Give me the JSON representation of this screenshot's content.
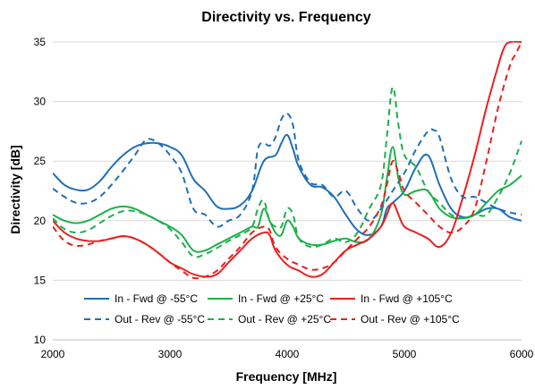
{
  "chart_data": {
    "type": "line",
    "title": "Directivity vs. Frequency",
    "xlabel": "Frequency [MHz]",
    "ylabel": "Directivity [dB]",
    "xlim": [
      2000,
      6000
    ],
    "ylim": [
      10,
      35
    ],
    "xticks": [
      2000,
      3000,
      4000,
      5000,
      6000
    ],
    "yticks": [
      10,
      15,
      20,
      25,
      30,
      35
    ],
    "grid": "horizontal",
    "legend_position": "bottom-inside",
    "series": [
      {
        "name": "In - Fwd @ -55°C",
        "color": "#1f6fb5",
        "dash": "solid",
        "x": [
          2000,
          2100,
          2200,
          2300,
          2400,
          2500,
          2600,
          2700,
          2800,
          2900,
          3000,
          3100,
          3200,
          3300,
          3400,
          3500,
          3600,
          3700,
          3800,
          3900,
          3950,
          4000,
          4050,
          4100,
          4200,
          4300,
          4400,
          4500,
          4600,
          4700,
          4800,
          4850,
          4900,
          5000,
          5100,
          5200,
          5300,
          5400,
          5500,
          5600,
          5700,
          5800,
          5900,
          6000
        ],
        "y": [
          24,
          23,
          22.6,
          22.6,
          23.3,
          24.5,
          25.5,
          26.2,
          26.5,
          26.5,
          26.2,
          25.5,
          23.5,
          22.5,
          21.2,
          21,
          21.3,
          22.5,
          25,
          25.5,
          26.5,
          27.2,
          26,
          24.5,
          23,
          22.8,
          22,
          20.5,
          19.2,
          18.8,
          19.5,
          21,
          21.5,
          22.5,
          24.5,
          25.5,
          23,
          21,
          20.3,
          20.5,
          21,
          21,
          20.3,
          20
        ]
      },
      {
        "name": "In - Fwd @ +25°C",
        "color": "#1db04b",
        "dash": "solid",
        "x": [
          2000,
          2100,
          2200,
          2300,
          2400,
          2500,
          2600,
          2700,
          2800,
          2900,
          3000,
          3100,
          3200,
          3300,
          3400,
          3500,
          3600,
          3700,
          3750,
          3800,
          3850,
          3900,
          3950,
          4000,
          4050,
          4100,
          4200,
          4300,
          4400,
          4500,
          4600,
          4700,
          4800,
          4850,
          4900,
          4950,
          5000,
          5100,
          5200,
          5300,
          5400,
          5500,
          5600,
          5700,
          5800,
          5900,
          6000
        ],
        "y": [
          20.5,
          20,
          19.8,
          20,
          20.5,
          21,
          21.2,
          21,
          20.5,
          20,
          19.5,
          18.8,
          17.5,
          17.5,
          18,
          18.5,
          19,
          19.5,
          19.5,
          21,
          20,
          19,
          18.8,
          20,
          19.5,
          18.5,
          18,
          18,
          18.3,
          18.5,
          18.2,
          18.5,
          20.5,
          23.5,
          26.2,
          23.5,
          22.2,
          22.5,
          22.5,
          21,
          20.3,
          20.2,
          20.5,
          21.5,
          22.5,
          23,
          23.8
        ]
      },
      {
        "name": "In - Fwd @ +105°C",
        "color": "#e8201e",
        "dash": "solid",
        "x": [
          2000,
          2100,
          2200,
          2300,
          2400,
          2500,
          2600,
          2700,
          2800,
          2900,
          3000,
          3100,
          3200,
          3300,
          3400,
          3500,
          3600,
          3700,
          3800,
          3850,
          3900,
          4000,
          4100,
          4200,
          4300,
          4400,
          4500,
          4600,
          4700,
          4800,
          4850,
          4900,
          4950,
          5000,
          5100,
          5200,
          5300,
          5400,
          5500,
          5600,
          5700,
          5800,
          5850,
          5900,
          6000
        ],
        "y": [
          20,
          19,
          18.5,
          18.3,
          18.3,
          18.5,
          18.7,
          18.5,
          18,
          17.3,
          16.5,
          16,
          15.5,
          15.3,
          15.5,
          16.5,
          17.5,
          18.5,
          19,
          18.8,
          17.5,
          16.3,
          15.8,
          15.3,
          15.5,
          16.5,
          17.5,
          18,
          18.5,
          19.5,
          20.5,
          21.5,
          20.5,
          19.5,
          19,
          18.5,
          17.8,
          19,
          22,
          25.5,
          29.5,
          33,
          34.5,
          35,
          35
        ]
      },
      {
        "name": "Out - Rev @ -55°C",
        "color": "#1f6fb5",
        "dash": "dashed",
        "x": [
          2000,
          2100,
          2200,
          2300,
          2400,
          2500,
          2600,
          2700,
          2800,
          2900,
          3000,
          3100,
          3200,
          3300,
          3400,
          3500,
          3600,
          3700,
          3750,
          3800,
          3850,
          3900,
          3950,
          4000,
          4050,
          4100,
          4200,
          4300,
          4400,
          4500,
          4600,
          4700,
          4800,
          4900,
          5000,
          5100,
          5200,
          5250,
          5300,
          5400,
          5500,
          5600,
          5700,
          5800,
          5900,
          6000
        ],
        "y": [
          22.7,
          22,
          21.5,
          21.5,
          22,
          23,
          24.2,
          25.5,
          26.8,
          26.5,
          25.5,
          24,
          21,
          20.5,
          19.5,
          20,
          20.5,
          22.5,
          26,
          26.5,
          26.3,
          27,
          28.5,
          29,
          28,
          25,
          23.2,
          23,
          22,
          22.5,
          21,
          20,
          21,
          22.5,
          24,
          26,
          27.5,
          27.6,
          27,
          23.5,
          22,
          22,
          21.5,
          21,
          20.7,
          20.5
        ]
      },
      {
        "name": "Out - Rev @ +25°C",
        "color": "#1db04b",
        "dash": "dashed",
        "x": [
          2000,
          2100,
          2200,
          2300,
          2400,
          2500,
          2600,
          2700,
          2800,
          2900,
          3000,
          3100,
          3200,
          3300,
          3400,
          3500,
          3600,
          3700,
          3750,
          3800,
          3850,
          3900,
          3950,
          4000,
          4050,
          4100,
          4200,
          4300,
          4400,
          4500,
          4600,
          4700,
          4800,
          4850,
          4900,
          4950,
          5000,
          5100,
          5200,
          5300,
          5400,
          5500,
          5600,
          5700,
          5800,
          5900,
          6000
        ],
        "y": [
          20.2,
          19.3,
          19,
          19.2,
          19.8,
          20.4,
          20.8,
          20.8,
          20.5,
          20,
          19.3,
          18.2,
          17,
          17.2,
          17.7,
          18.3,
          18.8,
          19.5,
          21,
          21.7,
          20,
          19.5,
          19.5,
          21,
          20.5,
          18.5,
          17.8,
          18,
          18.5,
          18.2,
          19,
          21,
          23,
          27,
          31.2,
          28,
          25.5,
          24.5,
          22.5,
          21.5,
          20.5,
          20.2,
          20.5,
          20.5,
          22,
          24,
          26.7
        ]
      },
      {
        "name": "Out - Rev @ +105°C",
        "color": "#e8201e",
        "dash": "dashed",
        "x": [
          2000,
          2100,
          2200,
          2300,
          2400,
          2500,
          2600,
          2700,
          2800,
          2900,
          3000,
          3100,
          3200,
          3300,
          3400,
          3500,
          3600,
          3700,
          3800,
          3850,
          3900,
          4000,
          4100,
          4200,
          4300,
          4400,
          4500,
          4600,
          4700,
          4800,
          4850,
          4900,
          4950,
          5000,
          5100,
          5200,
          5300,
          5400,
          5500,
          5600,
          5700,
          5800,
          5900,
          5950,
          6000
        ],
        "y": [
          19.5,
          18.3,
          17.9,
          18,
          18.3,
          18.5,
          18.7,
          18.5,
          18,
          17.3,
          16.5,
          15.8,
          15.2,
          15.3,
          15.8,
          16.8,
          17.8,
          19,
          19.5,
          19.2,
          17.8,
          16.8,
          16.3,
          15.9,
          16,
          16.5,
          17.5,
          18.5,
          19.5,
          21.2,
          23,
          25,
          24,
          22.5,
          21.5,
          20.5,
          19.5,
          19,
          19.5,
          21,
          25,
          29.5,
          33,
          34,
          35
        ]
      }
    ]
  }
}
